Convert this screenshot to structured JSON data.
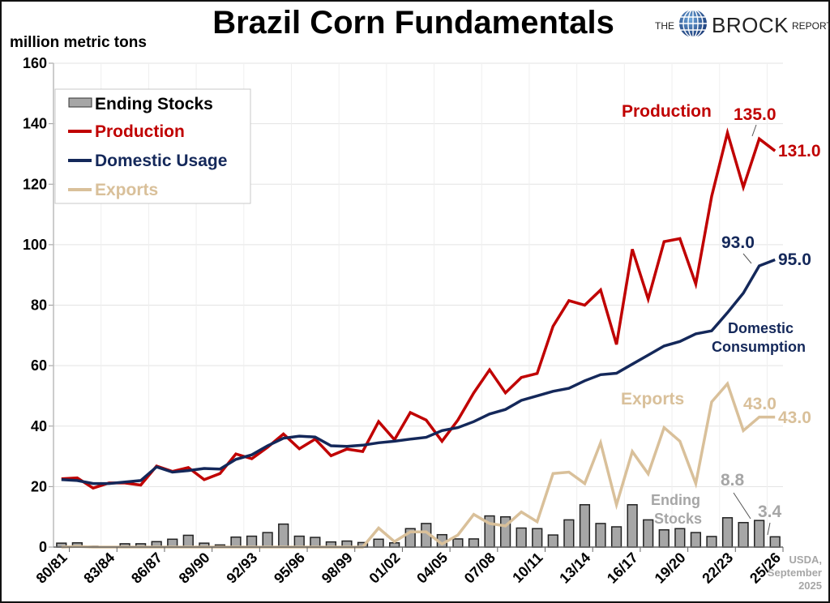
{
  "header": {
    "title": "Brazil Corn Fundamentals",
    "logo": {
      "the": "THE",
      "brock": "BROCK",
      "report": "REPORT",
      "icon": "globe-icon"
    },
    "source_lines": [
      "USDA,",
      "September",
      "2025"
    ]
  },
  "colors": {
    "production": "#c00000",
    "domestic": "#14285a",
    "exports": "#d9c09a",
    "stocks_fill": "#a6a6a6",
    "stocks_label": "#a6a6a6",
    "grid": "#e3e3e3"
  },
  "chart_data": {
    "type": "bar+line",
    "title": "Brazil Corn Fundamentals",
    "ylabel": "million metric tons",
    "xlabel": "",
    "ylim": [
      0,
      160
    ],
    "yticks": [
      0,
      20,
      40,
      60,
      80,
      100,
      120,
      140,
      160
    ],
    "grid": true,
    "legend_position": "top-left",
    "categories": [
      "80/81",
      "81/82",
      "82/83",
      "83/84",
      "84/85",
      "85/86",
      "86/87",
      "87/88",
      "88/89",
      "89/90",
      "90/91",
      "91/92",
      "92/93",
      "93/94",
      "94/95",
      "95/96",
      "96/97",
      "97/98",
      "98/99",
      "99/00",
      "00/01",
      "01/02",
      "02/03",
      "03/04",
      "04/05",
      "05/06",
      "06/07",
      "07/08",
      "08/09",
      "09/10",
      "10/11",
      "11/12",
      "12/13",
      "13/14",
      "14/15",
      "15/16",
      "16/17",
      "17/18",
      "18/19",
      "19/20",
      "20/21",
      "21/22",
      "22/23",
      "23/24",
      "24/25",
      "25/26"
    ],
    "xtick_labels": [
      "80/81",
      "83/84",
      "86/87",
      "89/90",
      "92/93",
      "95/96",
      "98/99",
      "01/02",
      "04/05",
      "07/08",
      "10/11",
      "13/14",
      "16/17",
      "19/20",
      "22/23",
      "25/26"
    ],
    "series": [
      {
        "name": "Ending Stocks",
        "type": "bar",
        "legend": "Ending Stocks",
        "values": [
          1.3,
          1.4,
          0.3,
          0.2,
          1.1,
          1.1,
          1.8,
          2.6,
          3.9,
          1.3,
          0.7,
          3.3,
          3.6,
          4.8,
          7.6,
          3.6,
          3.2,
          1.7,
          2.0,
          1.5,
          2.6,
          1.4,
          6.1,
          7.8,
          4.1,
          2.7,
          2.7,
          10.3,
          10.0,
          6.3,
          6.1,
          4.0,
          9.0,
          14.0,
          7.8,
          6.7,
          14.0,
          9.0,
          5.7,
          6.1,
          4.8,
          3.5,
          9.7,
          8.1,
          8.8,
          3.4
        ]
      },
      {
        "name": "Production",
        "type": "line",
        "legend": "Production",
        "values": [
          22.6,
          22.9,
          19.5,
          21.2,
          21.2,
          20.5,
          26.8,
          25.0,
          26.3,
          22.3,
          24.3,
          30.8,
          29.2,
          33.0,
          37.4,
          32.5,
          35.7,
          30.2,
          32.4,
          31.6,
          41.5,
          35.5,
          44.5,
          42.0,
          35.0,
          42.0,
          51.0,
          58.6,
          51.0,
          56.1,
          57.4,
          73.0,
          81.5,
          80.0,
          85.0,
          67.0,
          98.5,
          82.0,
          101.0,
          102.0,
          87.0,
          116.0,
          137.0,
          119.0,
          135.0,
          131.0
        ]
      },
      {
        "name": "Domestic Usage",
        "type": "line",
        "legend": "Domestic Usage",
        "values": [
          22.3,
          22.0,
          21.0,
          21.0,
          21.5,
          22.0,
          26.5,
          24.8,
          25.3,
          26.0,
          25.8,
          29.0,
          30.5,
          33.5,
          36.0,
          36.7,
          36.4,
          33.5,
          33.3,
          33.7,
          34.5,
          35.0,
          35.7,
          36.3,
          38.5,
          39.5,
          41.5,
          44.0,
          45.5,
          48.5,
          50.0,
          51.5,
          52.5,
          55.0,
          57.0,
          57.5,
          60.5,
          63.5,
          66.5,
          68.0,
          70.5,
          71.5,
          77.5,
          84.0,
          93.0,
          95.0
        ]
      },
      {
        "name": "Exports",
        "type": "line",
        "legend": "Exports",
        "values": [
          0.0,
          0.2,
          0.0,
          0.0,
          0.0,
          0.0,
          0.0,
          0.0,
          0.0,
          0.0,
          0.0,
          0.0,
          0.0,
          0.0,
          0.0,
          0.0,
          0.0,
          0.0,
          0.0,
          0.0,
          6.3,
          1.8,
          5.0,
          5.0,
          1.0,
          4.0,
          10.8,
          7.8,
          7.0,
          11.6,
          8.4,
          24.3,
          24.8,
          21.0,
          34.5,
          14.0,
          31.6,
          24.2,
          39.5,
          35.0,
          21.0,
          48.0,
          54.0,
          38.5,
          43.0,
          43.0
        ]
      }
    ],
    "annotations": [
      {
        "text": "Production",
        "series": "Production"
      },
      {
        "text": "135.0",
        "series": "Production",
        "category": "24/25",
        "value": 135.0
      },
      {
        "text": "131.0",
        "series": "Production",
        "category": "25/26",
        "value": 131.0
      },
      {
        "text": "93.0",
        "series": "Domestic Usage",
        "category": "24/25",
        "value": 93.0
      },
      {
        "text": "95.0",
        "series": "Domestic Usage",
        "category": "25/26",
        "value": 95.0
      },
      {
        "text": "Domestic",
        "series": "Domestic Usage"
      },
      {
        "text": "Consumption",
        "series": "Domestic Usage"
      },
      {
        "text": "Exports",
        "series": "Exports"
      },
      {
        "text": "43.0",
        "series": "Exports",
        "category": "24/25",
        "value": 43.0
      },
      {
        "text": "43.0",
        "series": "Exports",
        "category": "25/26",
        "value": 43.0
      },
      {
        "text": "Ending",
        "series": "Ending Stocks"
      },
      {
        "text": "Stocks",
        "series": "Ending Stocks"
      },
      {
        "text": "8.8",
        "series": "Ending Stocks",
        "category": "24/25",
        "value": 8.8
      },
      {
        "text": "3.4",
        "series": "Ending Stocks",
        "category": "25/26",
        "value": 3.4
      }
    ]
  }
}
